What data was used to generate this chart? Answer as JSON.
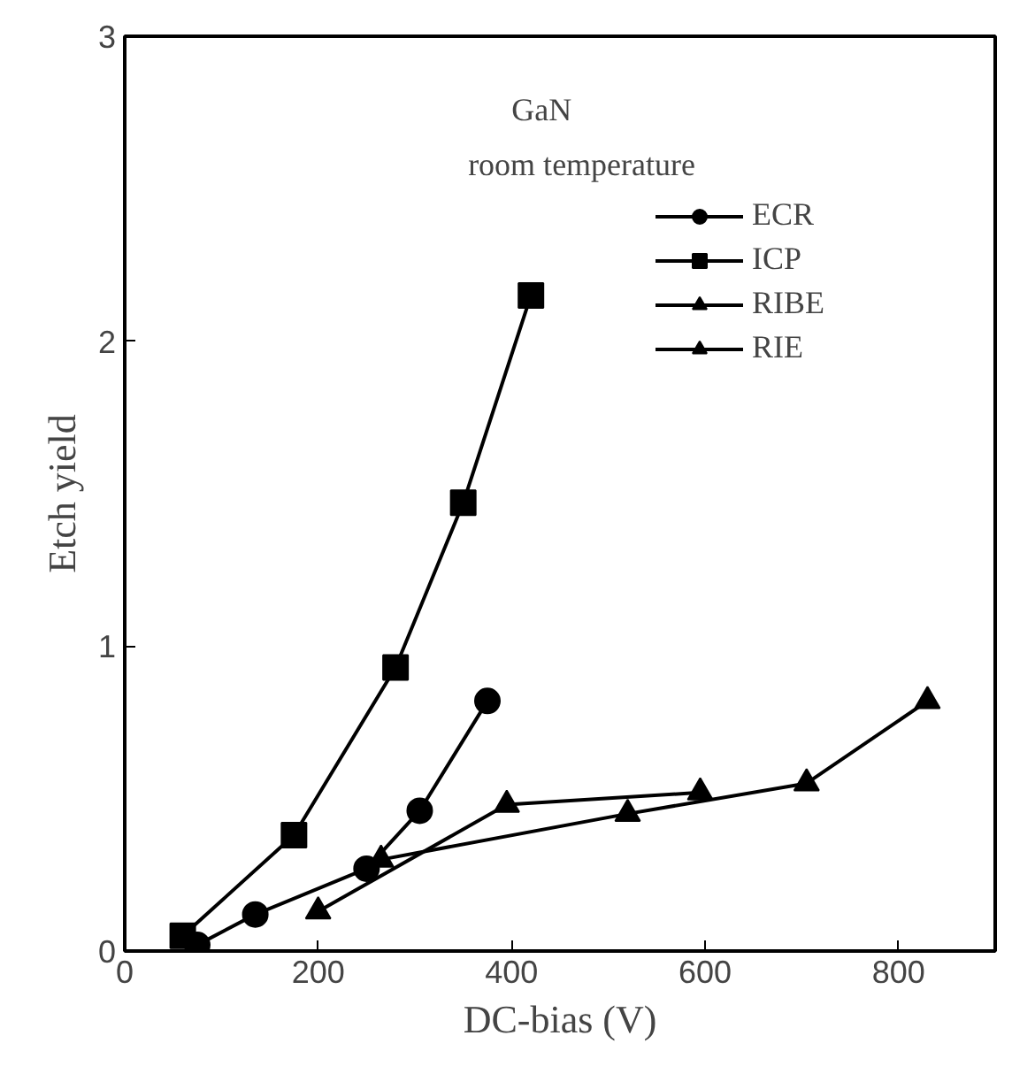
{
  "chart_data": {
    "type": "line",
    "xlabel": "DC-bias (V)",
    "ylabel": "Etch yield",
    "annotations": [
      "GaN",
      "room temperature"
    ],
    "xlim": [
      0,
      900
    ],
    "ylim": [
      0,
      3
    ],
    "xticks": [
      0,
      200,
      400,
      600,
      800
    ],
    "yticks": [
      0,
      1,
      2,
      3
    ],
    "grid": false,
    "legend": "top right",
    "line_style": "solid",
    "series": [
      {
        "name": "ECR",
        "color": "#000000",
        "marker": "circle",
        "x": [
          75,
          135,
          250,
          305,
          375
        ],
        "values": [
          0.02,
          0.12,
          0.27,
          0.46,
          0.82
        ]
      },
      {
        "name": "ICP",
        "color": "#000000",
        "marker": "square",
        "x": [
          60,
          175,
          280,
          350,
          420
        ],
        "values": [
          0.05,
          0.38,
          0.93,
          1.47,
          2.15
        ]
      },
      {
        "name": "RIBE",
        "color": "#000000",
        "marker": "triangle",
        "x": [
          200,
          395,
          595
        ],
        "values": [
          0.13,
          0.48,
          0.52
        ]
      },
      {
        "name": "RIE",
        "color": "#000000",
        "marker": "triangle",
        "x": [
          265,
          520,
          705,
          830
        ],
        "values": [
          0.3,
          0.45,
          0.55,
          0.82
        ]
      }
    ]
  }
}
